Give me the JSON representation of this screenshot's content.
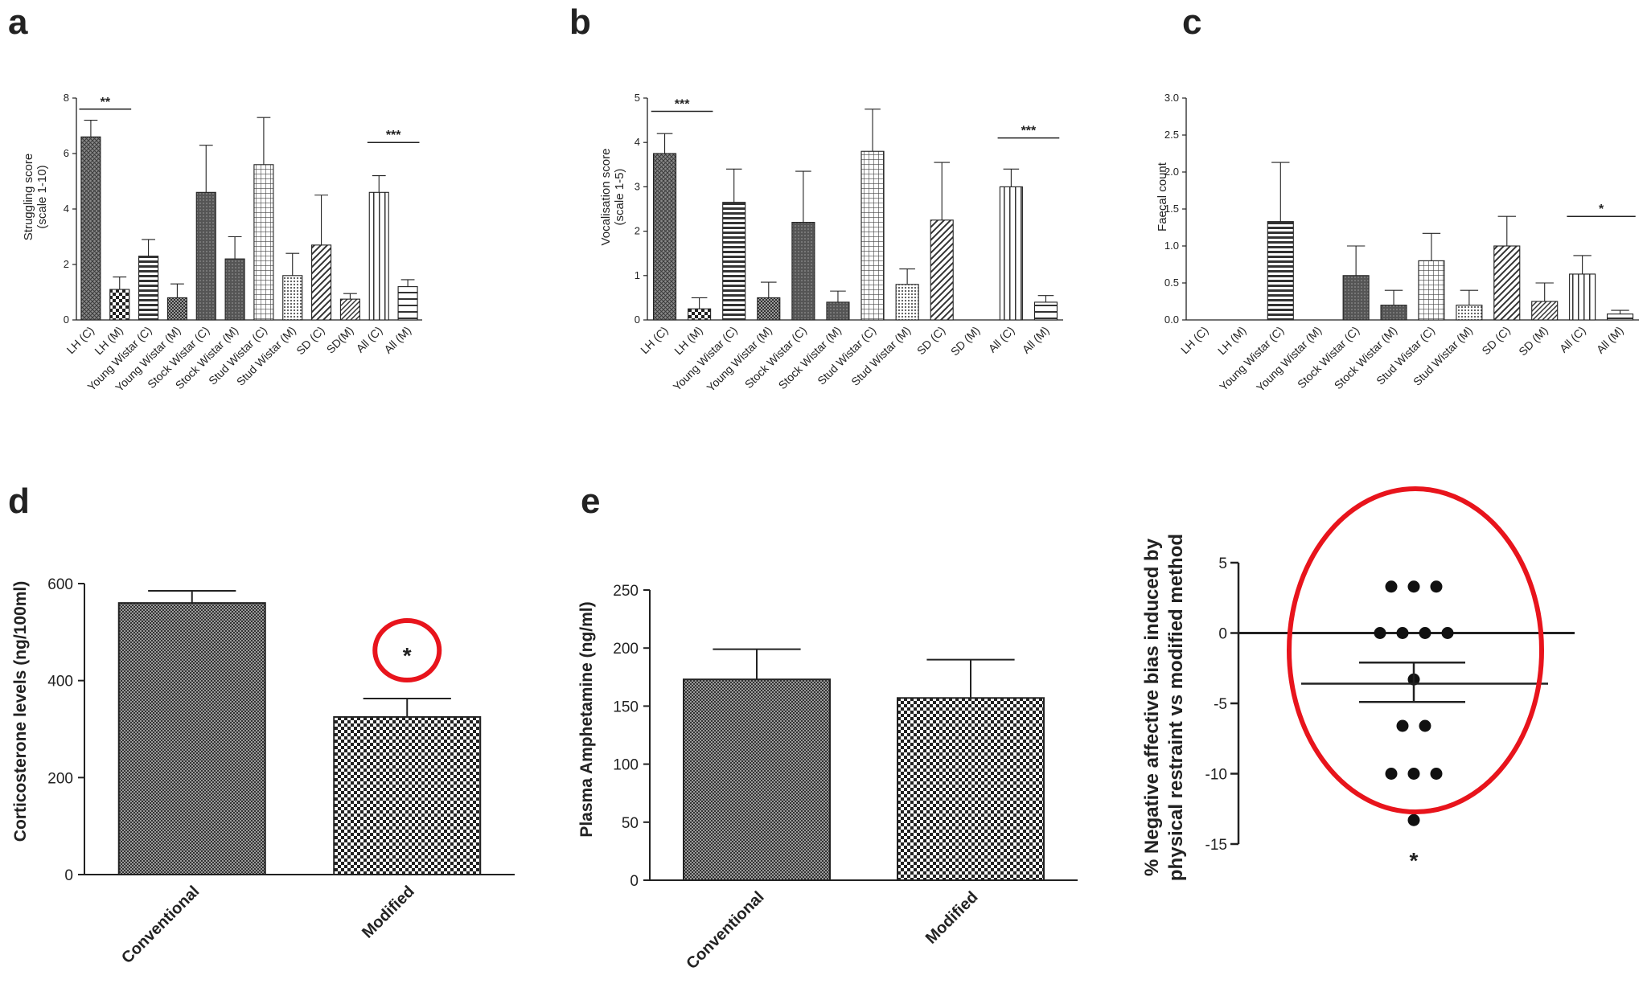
{
  "chart_data": [
    {
      "id": "a",
      "type": "bar",
      "panel_label": "a",
      "ylabel_lines": [
        "Struggling score",
        "(scale 1-10)"
      ],
      "ylim": [
        0,
        8
      ],
      "yticks": [
        0,
        2,
        4,
        6,
        8
      ],
      "ytick_labels": [
        "0",
        "2",
        "4",
        "6",
        "8"
      ],
      "categories": [
        "LH (C)",
        "LH (M)",
        "Young Wistar (C)",
        "Young Wistar (M)",
        "Stock Wistar (C)",
        "Stock Wistar (M)",
        "Stud Wistar (C)",
        "Stud Wistar (M)",
        "SD (C)",
        "SD(M)",
        "All (C)",
        "All (M)"
      ],
      "values": [
        6.6,
        1.1,
        2.3,
        0.8,
        4.6,
        2.2,
        5.6,
        1.6,
        2.7,
        0.75,
        4.6,
        1.2
      ],
      "errors": [
        0.6,
        0.45,
        0.6,
        0.5,
        1.7,
        0.8,
        1.7,
        0.8,
        1.8,
        0.2,
        0.6,
        0.25
      ],
      "patterns": [
        "xhatch",
        "checker",
        "hlines",
        "dense",
        "dark",
        "dark",
        "grid",
        "dots",
        "diag",
        "diag2",
        "vlines",
        "hlines2"
      ],
      "significance": [
        {
          "label": "**",
          "from": 0,
          "to": 1,
          "y": 7.6
        },
        {
          "label": "***",
          "from": 10,
          "to": 11,
          "y": 6.4
        }
      ]
    },
    {
      "id": "b",
      "type": "bar",
      "panel_label": "b",
      "ylabel_lines": [
        "Vocalisation score",
        "(scale 1-5)"
      ],
      "ylim": [
        0,
        5
      ],
      "yticks": [
        0,
        1,
        2,
        3,
        4,
        5
      ],
      "ytick_labels": [
        "0",
        "1",
        "2",
        "3",
        "4",
        "5"
      ],
      "categories": [
        "LH (C)",
        "LH (M)",
        "Young Wistar (C)",
        "Young Wistar (M)",
        "Stock Wistar (C)",
        "Stock Wistar (M)",
        "Stud Wistar (C)",
        "Stud Wistar (M)",
        "SD (C)",
        "SD (M)",
        "All (C)",
        "All (M)"
      ],
      "values": [
        3.75,
        0.25,
        2.65,
        0.5,
        2.2,
        0.4,
        3.8,
        0.8,
        2.25,
        0,
        3.0,
        0.4
      ],
      "errors": [
        0.45,
        0.25,
        0.75,
        0.35,
        1.15,
        0.25,
        0.95,
        0.35,
        1.3,
        0,
        0.4,
        0.15
      ],
      "patterns": [
        "xhatch",
        "checker",
        "hlines",
        "dense",
        "dark",
        "dark",
        "grid",
        "dots",
        "diag",
        "diag2",
        "vlines",
        "hlines2"
      ],
      "significance": [
        {
          "label": "***",
          "from": 0,
          "to": 1,
          "y": 4.7
        },
        {
          "label": "***",
          "from": 10,
          "to": 11,
          "y": 4.1
        }
      ]
    },
    {
      "id": "c",
      "type": "bar",
      "panel_label": "c",
      "ylabel_lines": [
        "Faecal count"
      ],
      "ylim": [
        0,
        3
      ],
      "yticks": [
        0,
        0.5,
        1,
        1.5,
        2,
        2.5,
        3
      ],
      "ytick_labels": [
        "0.0",
        "0.5",
        "1.0",
        "1.5",
        "2.0",
        "2.5",
        "3.0"
      ],
      "categories": [
        "LH (C)",
        "LH (M)",
        "Young Wistar (C)",
        "Young Wistar (M)",
        "Stock Wistar (C)",
        "Stock Wistar (M)",
        "Stud Wistar (C)",
        "Stud Wistar (M)",
        "SD (C)",
        "SD (M)",
        "All (C)",
        "All (M)"
      ],
      "values": [
        0,
        0,
        1.33,
        0,
        0.6,
        0.2,
        0.8,
        0.2,
        1.0,
        0.25,
        0.62,
        0.08
      ],
      "errors": [
        0,
        0,
        0.8,
        0,
        0.4,
        0.2,
        0.37,
        0.2,
        0.4,
        0.25,
        0.25,
        0.05
      ],
      "patterns": [
        "xhatch",
        "checker",
        "hlines",
        "dense",
        "dark",
        "dark",
        "grid",
        "dots",
        "diag",
        "diag2",
        "vlines",
        "hlines2"
      ],
      "significance": [
        {
          "label": "*",
          "from": 10,
          "to": 11,
          "y": 1.4
        }
      ]
    },
    {
      "id": "d",
      "type": "bar",
      "panel_label": "d",
      "ylabel": "Corticosterone levels (ng/100ml)",
      "ylim": [
        0,
        600
      ],
      "yticks": [
        0,
        200,
        400,
        600
      ],
      "ytick_labels": [
        "0",
        "200",
        "400",
        "600"
      ],
      "categories": [
        "Conventional",
        "Modified"
      ],
      "values": [
        560,
        325
      ],
      "errors": [
        25,
        38
      ],
      "patterns": [
        "dense",
        "checker"
      ],
      "annotation": {
        "label": "*",
        "category_index": 1,
        "circled": true
      }
    },
    {
      "id": "e",
      "type": "bar",
      "panel_label": "e",
      "ylabel": "Plasma Amphetamine (ng/ml)",
      "ylim": [
        0,
        250
      ],
      "yticks": [
        0,
        50,
        100,
        150,
        200,
        250
      ],
      "ytick_labels": [
        "0",
        "50",
        "100",
        "150",
        "200",
        "250"
      ],
      "categories": [
        "Conventional",
        "Modified"
      ],
      "values": [
        173,
        157
      ],
      "errors": [
        26,
        33
      ],
      "patterns": [
        "dense",
        "checker"
      ]
    },
    {
      "id": "f",
      "type": "scatter",
      "ylabel_lines": [
        "% Negative affective bias induced by",
        "physical restraint vs modified method"
      ],
      "ylim": [
        -15,
        5
      ],
      "yticks": [
        5,
        0,
        -5,
        -10,
        -15
      ],
      "ytick_labels": [
        "5",
        "0",
        "-5",
        "-10",
        "-15"
      ],
      "points": [
        {
          "x": 1,
          "y": 3.3
        },
        {
          "x": 2,
          "y": 3.3
        },
        {
          "x": 3,
          "y": 3.3
        },
        {
          "x": 0.5,
          "y": 0
        },
        {
          "x": 1.5,
          "y": 0
        },
        {
          "x": 2.5,
          "y": 0
        },
        {
          "x": 3.5,
          "y": 0
        },
        {
          "x": 2,
          "y": -3.3
        },
        {
          "x": 1.5,
          "y": -6.6
        },
        {
          "x": 2.5,
          "y": -6.6
        },
        {
          "x": 1,
          "y": -10
        },
        {
          "x": 2,
          "y": -10
        },
        {
          "x": 3,
          "y": -10
        },
        {
          "x": 2,
          "y": -13.3
        }
      ],
      "mean": -3.6,
      "sem_upper": -2.1,
      "sem_lower": -4.9,
      "reference_line_y": 0,
      "annotation": {
        "label": "*"
      }
    }
  ]
}
